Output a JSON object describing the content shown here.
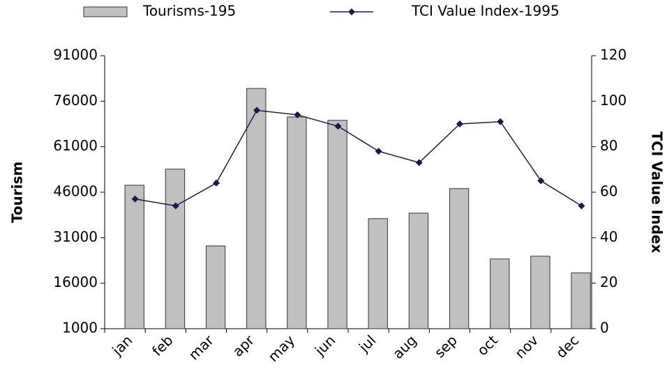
{
  "chart_data": {
    "type": "bar-line",
    "categories": [
      "jan",
      "feb",
      "mar",
      "apr",
      "may",
      "jun",
      "jul",
      "aug",
      "sep",
      "oct",
      "nov",
      "dec"
    ],
    "y_label": "Tourism",
    "y2_label": "TCI Value Index",
    "ylim": [
      1000,
      91000
    ],
    "yticks": [
      1000,
      16000,
      31000,
      46000,
      61000,
      76000,
      91000
    ],
    "y2lim": [
      0,
      120
    ],
    "y2ticks": [
      0,
      20,
      40,
      60,
      80,
      100,
      120
    ],
    "series": [
      {
        "name": "Tourisms-195",
        "type": "bar",
        "color": "#c0c0c0",
        "values": [
          48300,
          53600,
          28300,
          80200,
          70800,
          69700,
          37300,
          39100,
          47200,
          24000,
          24900,
          19400
        ]
      },
      {
        "name": "TCI Value Index-1995",
        "type": "line",
        "axis": "y2",
        "color": "#1a1a4a",
        "values": [
          57,
          54,
          64,
          96,
          94,
          89,
          78,
          73,
          90,
          91,
          65,
          54
        ]
      }
    ]
  }
}
